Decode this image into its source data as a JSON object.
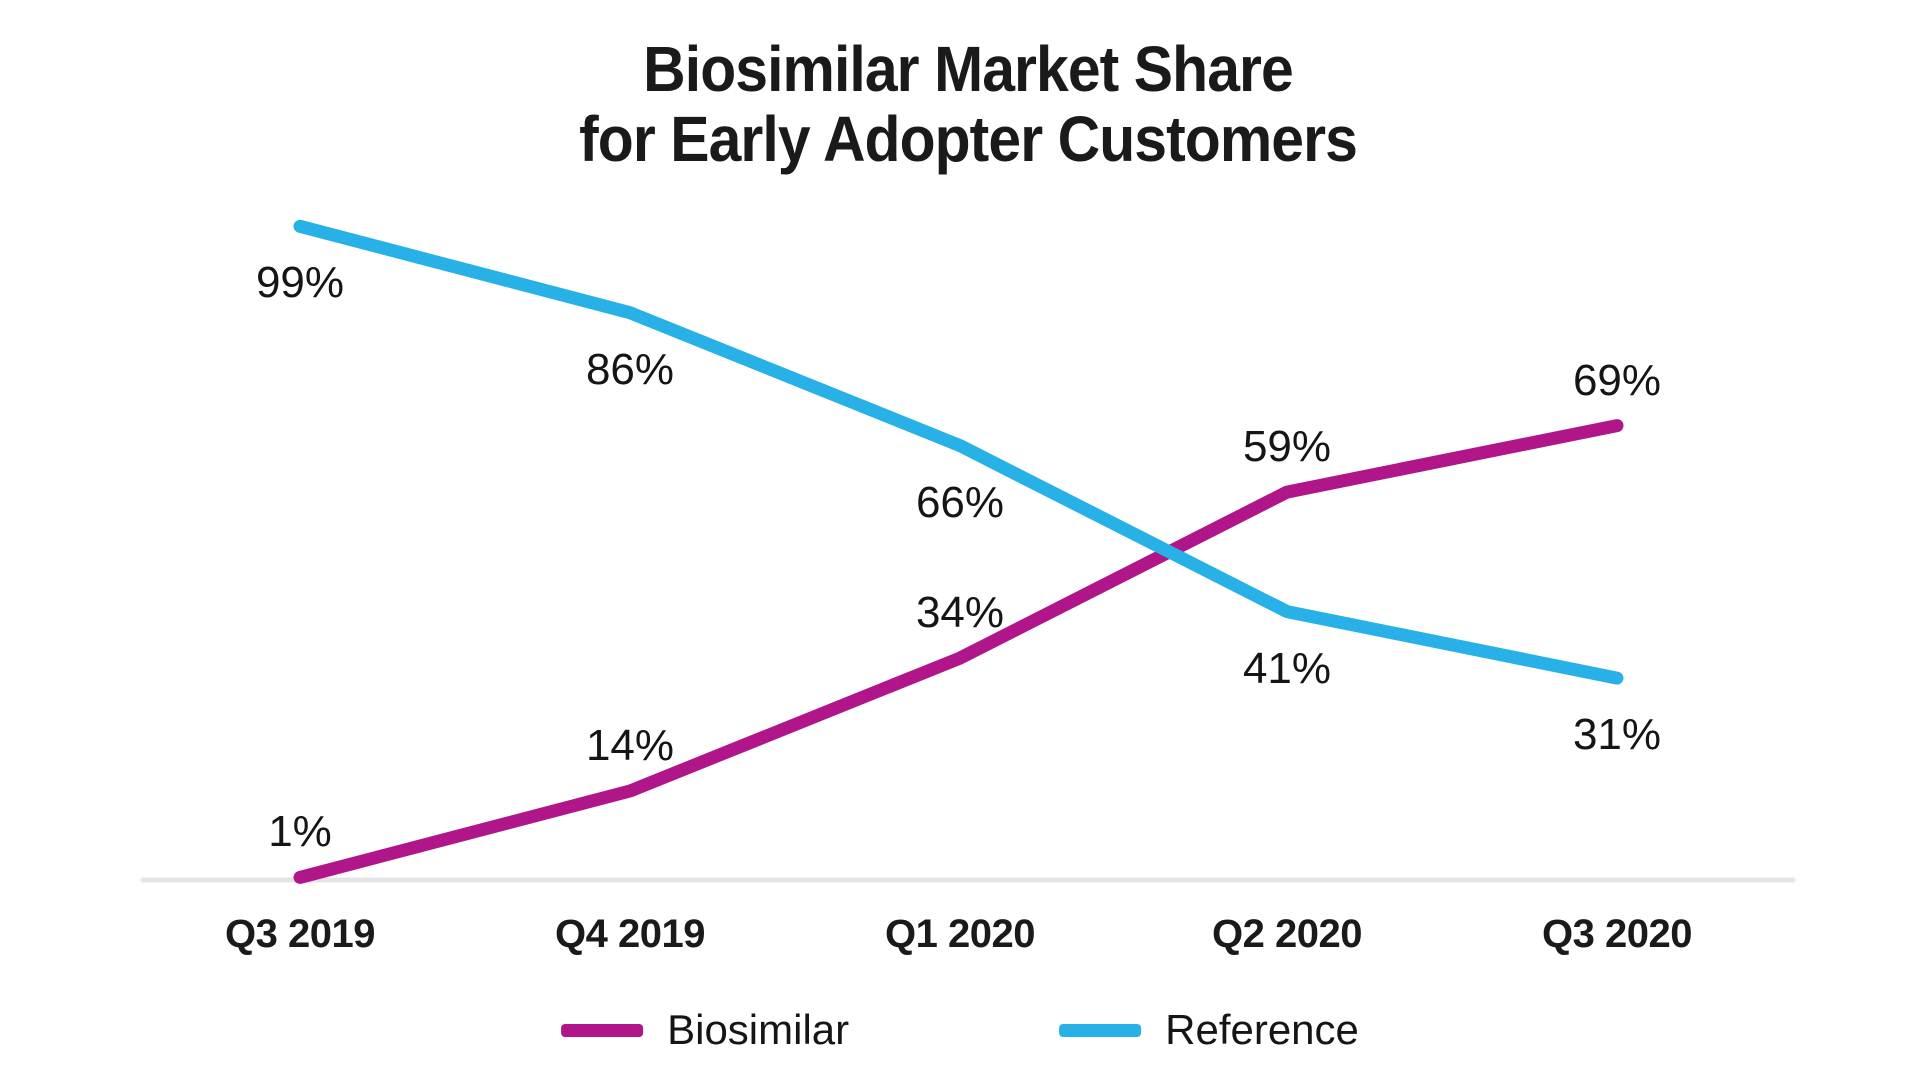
{
  "title": {
    "line1": "Biosimilar Market Share",
    "line2": "for Early Adopter Customers"
  },
  "colors": {
    "biosimilar": "#B0158A",
    "reference": "#27B1E6",
    "axis_line": "#E4E4E4",
    "text": "#1A1A1A"
  },
  "legend": [
    {
      "label": "Biosimilar",
      "color": "#B0158A"
    },
    {
      "label": "Reference",
      "color": "#27B1E6"
    }
  ],
  "chart_data": {
    "type": "line",
    "title": "Biosimilar Market Share for Early Adopter Customers",
    "categories": [
      "Q3 2019",
      "Q4 2019",
      "Q1 2020",
      "Q2 2020",
      "Q3 2020"
    ],
    "series": [
      {
        "name": "Biosimilar",
        "color": "#B0158A",
        "values": [
          1,
          14,
          34,
          59,
          69
        ],
        "labels": [
          "1%",
          "14%",
          "34%",
          "59%",
          "69%"
        ],
        "label_position": "above"
      },
      {
        "name": "Reference",
        "color": "#27B1E6",
        "values": [
          99,
          86,
          66,
          41,
          31
        ],
        "labels": [
          "99%",
          "86%",
          "66%",
          "41%",
          "31%"
        ],
        "label_position": "below"
      }
    ],
    "ylim": [
      0,
      100
    ],
    "value_suffix": "%",
    "grid": false,
    "y_axis_visible": false,
    "legend_position": "bottom"
  }
}
